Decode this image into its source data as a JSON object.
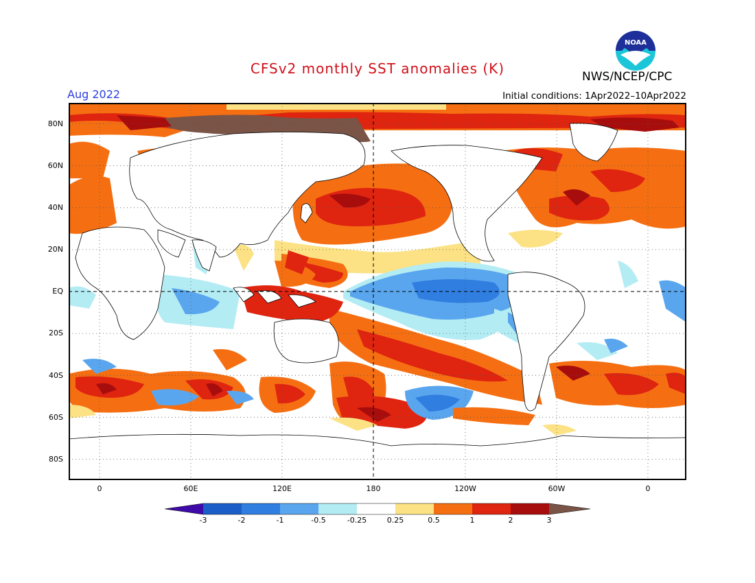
{
  "header": {
    "title": "CFSv2 monthly SST anomalies (K)",
    "period": "Aug 2022",
    "initial_conditions": "Initial conditions: 1Apr2022–10Apr2022",
    "agency": "NWS/NCEP/CPC",
    "logo_text": "NOAA"
  },
  "map": {
    "projection": "cylindrical equidistant",
    "longitude_range": [
      "20W",
      "20E (wrapping, centered on 180)"
    ],
    "latitude_range": [
      "90S",
      "90N"
    ],
    "lat_labels": [
      "80N",
      "60N",
      "40N",
      "20N",
      "EQ",
      "20S",
      "40S",
      "60S",
      "80S"
    ],
    "lon_labels": [
      "0",
      "60E",
      "120E",
      "180",
      "120W",
      "60W",
      "0"
    ],
    "grid": "dotted",
    "reference_lines": [
      "equator dashed",
      "180 meridian dashed"
    ]
  },
  "colorbar": {
    "levels": [
      "-3",
      "-2",
      "-1",
      "-0.5",
      "-0.25",
      "0.25",
      "0.5",
      "1",
      "2",
      "3"
    ],
    "colors": [
      "#3e0aa8",
      "#1a5fc8",
      "#2f7ee0",
      "#5aa6ee",
      "#b4ecf4",
      "#ffffff",
      "#fce284",
      "#f56f12",
      "#df2410",
      "#a80d0d",
      "#7a5446"
    ]
  },
  "colors": {
    "title": "#d0101a",
    "period": "#2a3de0",
    "ocean_neutral": "#ffffff",
    "land_outline": "#000000"
  }
}
